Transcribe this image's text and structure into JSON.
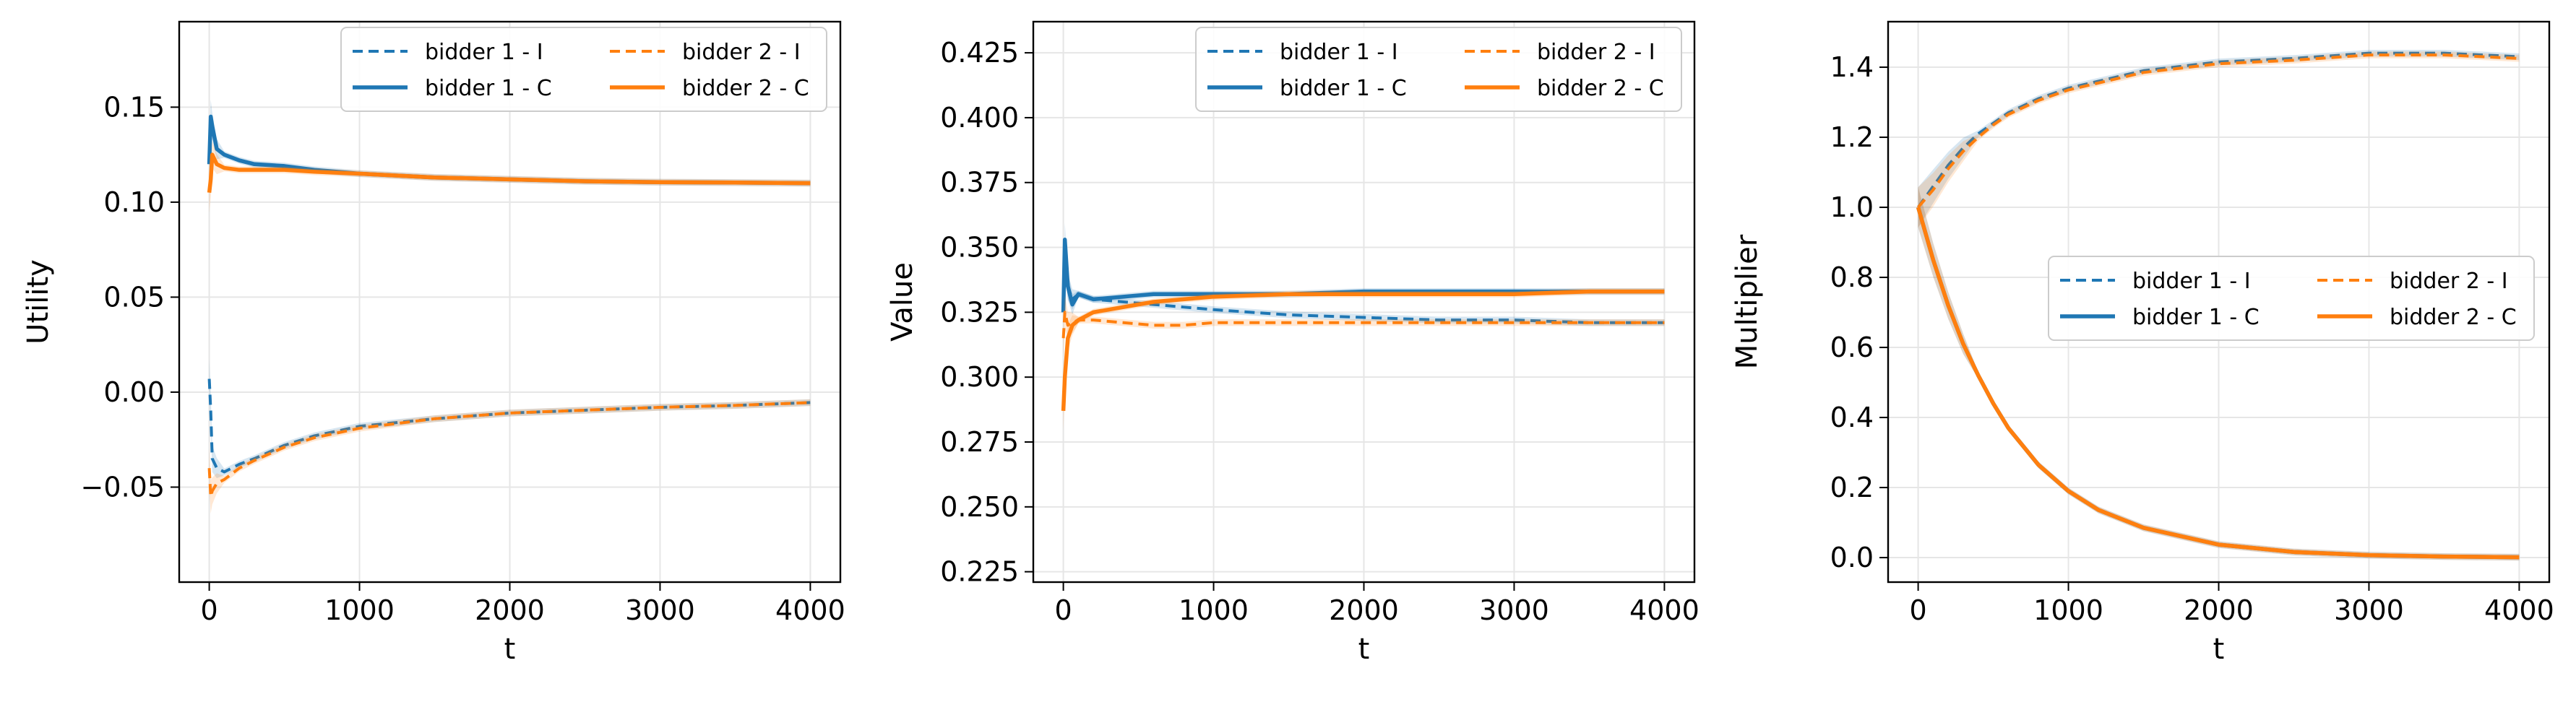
{
  "colors": {
    "bidder1": "#1f77b4",
    "bidder2": "#ff7f0e"
  },
  "chart_data": [
    {
      "type": "line",
      "xlabel": "t",
      "ylabel": "Utility",
      "xlim": [
        -200,
        4200
      ],
      "ylim": [
        -0.1,
        0.195
      ],
      "xticks": [
        0,
        1000,
        2000,
        3000,
        4000
      ],
      "xtick_labels": [
        "0",
        "1000",
        "2000",
        "3000",
        "4000"
      ],
      "yticks": [
        -0.05,
        0.0,
        0.05,
        0.1,
        0.15
      ],
      "ytick_labels": [
        "−0.05",
        "0.00",
        "0.05",
        "0.10",
        "0.15"
      ],
      "grid": true,
      "legend": {
        "position": "upper-right",
        "columns": 2
      },
      "series": [
        {
          "name": "bidder 1 - I",
          "color": "#1f77b4",
          "dash": "dashed",
          "x": [
            0,
            10,
            20,
            50,
            100,
            200,
            300,
            500,
            700,
            1000,
            1500,
            2000,
            2500,
            3000,
            3500,
            4000
          ],
          "y": [
            0.007,
            -0.01,
            -0.035,
            -0.04,
            -0.042,
            -0.038,
            -0.035,
            -0.028,
            -0.023,
            -0.018,
            -0.014,
            -0.011,
            -0.0095,
            -0.008,
            -0.007,
            -0.0055
          ]
        },
        {
          "name": "bidder 1 - C",
          "color": "#1f77b4",
          "dash": "solid",
          "x": [
            0,
            10,
            20,
            50,
            100,
            200,
            300,
            500,
            700,
            1000,
            1500,
            2000,
            2500,
            3000,
            3500,
            4000
          ],
          "y": [
            0.12,
            0.145,
            0.14,
            0.128,
            0.125,
            0.122,
            0.12,
            0.119,
            0.117,
            0.115,
            0.113,
            0.112,
            0.111,
            0.1105,
            0.1103,
            0.11
          ]
        },
        {
          "name": "bidder 2 - I",
          "color": "#ff7f0e",
          "dash": "dashed",
          "x": [
            0,
            10,
            20,
            50,
            100,
            200,
            300,
            500,
            700,
            1000,
            1500,
            2000,
            2500,
            3000,
            3500,
            4000
          ],
          "y": [
            -0.04,
            -0.055,
            -0.052,
            -0.048,
            -0.046,
            -0.04,
            -0.036,
            -0.029,
            -0.024,
            -0.019,
            -0.014,
            -0.011,
            -0.0095,
            -0.008,
            -0.007,
            -0.0055
          ]
        },
        {
          "name": "bidder 2 - C",
          "color": "#ff7f0e",
          "dash": "solid",
          "x": [
            0,
            10,
            20,
            50,
            100,
            200,
            300,
            500,
            700,
            1000,
            1500,
            2000,
            2500,
            3000,
            3500,
            4000
          ],
          "y": [
            0.105,
            0.112,
            0.125,
            0.12,
            0.118,
            0.117,
            0.117,
            0.117,
            0.116,
            0.115,
            0.113,
            0.112,
            0.111,
            0.1105,
            0.1103,
            0.11
          ]
        }
      ]
    },
    {
      "type": "line",
      "xlabel": "t",
      "ylabel": "Value",
      "xlim": [
        -200,
        4200
      ],
      "ylim": [
        0.221,
        0.437
      ],
      "xticks": [
        0,
        1000,
        2000,
        3000,
        4000
      ],
      "xtick_labels": [
        "0",
        "1000",
        "2000",
        "3000",
        "4000"
      ],
      "yticks": [
        0.225,
        0.25,
        0.275,
        0.3,
        0.325,
        0.35,
        0.375,
        0.4,
        0.425
      ],
      "ytick_labels": [
        "0.225",
        "0.250",
        "0.275",
        "0.300",
        "0.325",
        "0.350",
        "0.375",
        "0.400",
        "0.425"
      ],
      "grid": true,
      "legend": {
        "position": "upper-right",
        "columns": 2
      },
      "series": [
        {
          "name": "bidder 1 - I",
          "color": "#1f77b4",
          "dash": "dashed",
          "x": [
            0,
            10,
            30,
            60,
            100,
            200,
            400,
            600,
            800,
            1000,
            1500,
            2000,
            2500,
            3000,
            3500,
            4000
          ],
          "y": [
            0.33,
            0.345,
            0.335,
            0.33,
            0.332,
            0.33,
            0.329,
            0.328,
            0.327,
            0.326,
            0.324,
            0.323,
            0.322,
            0.322,
            0.321,
            0.321
          ]
        },
        {
          "name": "bidder 1 - C",
          "color": "#1f77b4",
          "dash": "solid",
          "x": [
            0,
            10,
            30,
            60,
            100,
            200,
            400,
            600,
            800,
            1000,
            1500,
            2000,
            2500,
            3000,
            3500,
            4000
          ],
          "y": [
            0.325,
            0.353,
            0.335,
            0.328,
            0.332,
            0.33,
            0.331,
            0.332,
            0.332,
            0.332,
            0.332,
            0.333,
            0.333,
            0.333,
            0.333,
            0.333
          ]
        },
        {
          "name": "bidder 2 - I",
          "color": "#ff7f0e",
          "dash": "dashed",
          "x": [
            0,
            10,
            30,
            60,
            100,
            200,
            400,
            600,
            800,
            1000,
            1500,
            2000,
            2500,
            3000,
            3500,
            4000
          ],
          "y": [
            0.315,
            0.325,
            0.32,
            0.321,
            0.322,
            0.322,
            0.321,
            0.32,
            0.32,
            0.321,
            0.321,
            0.321,
            0.321,
            0.321,
            0.321,
            0.321
          ]
        },
        {
          "name": "bidder 2 - C",
          "color": "#ff7f0e",
          "dash": "solid",
          "x": [
            0,
            10,
            30,
            60,
            100,
            200,
            400,
            600,
            800,
            1000,
            1500,
            2000,
            2500,
            3000,
            3500,
            4000
          ],
          "y": [
            0.287,
            0.3,
            0.315,
            0.32,
            0.322,
            0.325,
            0.327,
            0.329,
            0.33,
            0.331,
            0.332,
            0.332,
            0.332,
            0.332,
            0.333,
            0.333
          ]
        }
      ]
    },
    {
      "type": "line",
      "xlabel": "t",
      "ylabel": "Multiplier",
      "xlim": [
        -200,
        4200
      ],
      "ylim": [
        -0.07,
        1.53
      ],
      "xticks": [
        0,
        1000,
        2000,
        3000,
        4000
      ],
      "xtick_labels": [
        "0",
        "1000",
        "2000",
        "3000",
        "4000"
      ],
      "yticks": [
        0.0,
        0.2,
        0.4,
        0.6,
        0.8,
        1.0,
        1.2,
        1.4
      ],
      "ytick_labels": [
        "0.0",
        "0.2",
        "0.4",
        "0.6",
        "0.8",
        "1.0",
        "1.2",
        "1.4"
      ],
      "grid": true,
      "legend": {
        "position": "center-right",
        "columns": 2
      },
      "series": [
        {
          "name": "bidder 1 - I",
          "color": "#1f77b4",
          "dash": "dashed",
          "x": [
            0,
            100,
            200,
            300,
            400,
            500,
            600,
            800,
            1000,
            1200,
            1500,
            2000,
            2500,
            3000,
            3500,
            4000
          ],
          "y": [
            1.0,
            1.06,
            1.12,
            1.17,
            1.21,
            1.24,
            1.27,
            1.31,
            1.34,
            1.36,
            1.39,
            1.415,
            1.425,
            1.44,
            1.44,
            1.43
          ]
        },
        {
          "name": "bidder 1 - C",
          "color": "#1f77b4",
          "dash": "solid",
          "x": [
            0,
            100,
            200,
            300,
            400,
            500,
            600,
            800,
            1000,
            1200,
            1500,
            2000,
            2500,
            3000,
            3500,
            4000
          ],
          "y": [
            1.0,
            0.85,
            0.72,
            0.61,
            0.52,
            0.44,
            0.37,
            0.265,
            0.19,
            0.136,
            0.085,
            0.037,
            0.016,
            0.007,
            0.003,
            0.001
          ]
        },
        {
          "name": "bidder 2 - I",
          "color": "#ff7f0e",
          "dash": "dashed",
          "x": [
            0,
            100,
            200,
            300,
            400,
            500,
            600,
            800,
            1000,
            1200,
            1500,
            2000,
            2500,
            3000,
            3500,
            4000
          ],
          "y": [
            1.0,
            1.05,
            1.11,
            1.16,
            1.2,
            1.235,
            1.265,
            1.305,
            1.335,
            1.355,
            1.385,
            1.41,
            1.42,
            1.435,
            1.435,
            1.425
          ]
        },
        {
          "name": "bidder 2 - C",
          "color": "#ff7f0e",
          "dash": "solid",
          "x": [
            0,
            100,
            200,
            300,
            400,
            500,
            600,
            800,
            1000,
            1200,
            1500,
            2000,
            2500,
            3000,
            3500,
            4000
          ],
          "y": [
            1.0,
            0.85,
            0.72,
            0.61,
            0.52,
            0.44,
            0.37,
            0.265,
            0.19,
            0.136,
            0.085,
            0.037,
            0.016,
            0.007,
            0.003,
            0.001
          ]
        }
      ]
    }
  ]
}
